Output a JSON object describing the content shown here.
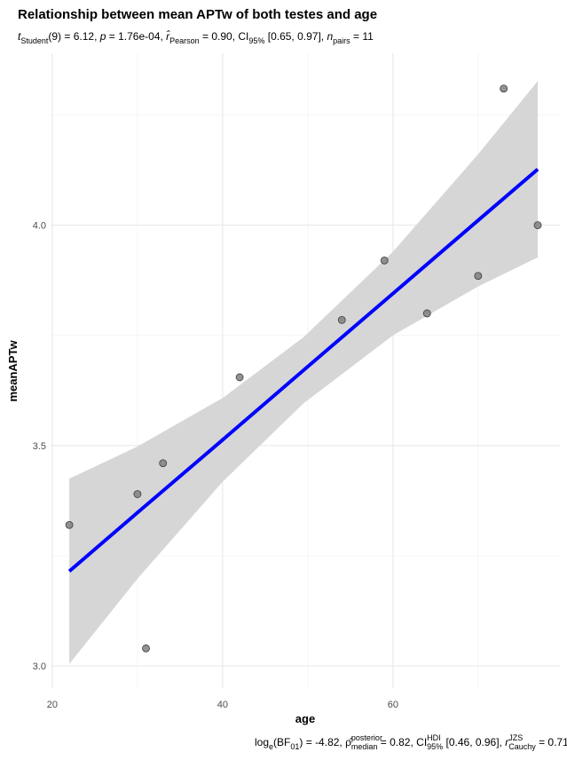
{
  "chart_data": {
    "type": "scatter",
    "title": "Relationship between mean APTw of both testes and age",
    "subtitle": [
      {
        "text": "t",
        "style": "italic"
      },
      {
        "text": "Student",
        "style": "sub"
      },
      {
        "text": "(9) = 6.12, ",
        "style": "normal"
      },
      {
        "text": "p",
        "style": "italic"
      },
      {
        "text": " = 1.76e-04, ",
        "style": "normal"
      },
      {
        "text": "r̂",
        "style": "italic"
      },
      {
        "text": "Pearson",
        "style": "sub"
      },
      {
        "text": " = 0.90, CI",
        "style": "normal"
      },
      {
        "text": "95%",
        "style": "sub"
      },
      {
        "text": " [0.65, 0.97], ",
        "style": "normal"
      },
      {
        "text": "n",
        "style": "italic"
      },
      {
        "text": "pairs",
        "style": "sub"
      },
      {
        "text": " = 11",
        "style": "normal"
      }
    ],
    "caption": [
      {
        "text": "log",
        "style": "normal"
      },
      {
        "text": "e",
        "style": "sub"
      },
      {
        "text": "(BF",
        "style": "normal"
      },
      {
        "text": "01",
        "style": "sub"
      },
      {
        "text": ") = -4.82, ",
        "style": "normal"
      },
      {
        "text": "ρ̂",
        "style": "normal"
      },
      {
        "text": "posterior",
        "style": "sup"
      },
      {
        "text": "median",
        "style": "sub"
      },
      {
        "text": " = 0.82, CI",
        "style": "normal"
      },
      {
        "text": "HDI",
        "style": "sup"
      },
      {
        "text": "95%",
        "style": "sub"
      },
      {
        "text": " [0.46, 0.96], ",
        "style": "normal"
      },
      {
        "text": "r",
        "style": "italic"
      },
      {
        "text": "JZS",
        "style": "sup"
      },
      {
        "text": "Cauchy",
        "style": "sub"
      },
      {
        "text": " = 0.71",
        "style": "normal"
      }
    ],
    "xlabel": "age",
    "ylabel": "meanAPTw",
    "x": [
      22,
      30,
      31,
      33,
      42,
      54,
      59,
      64,
      70,
      73,
      77
    ],
    "values": [
      3.32,
      3.39,
      3.04,
      3.46,
      3.655,
      3.785,
      3.92,
      3.8,
      3.885,
      4.31,
      4.0
    ],
    "color": "#808080",
    "fit": {
      "color": "#0000ff",
      "band_color": "#d6d6d6",
      "x": [
        22,
        30,
        40,
        49.5,
        60,
        70,
        77
      ],
      "y": [
        3.215,
        3.348,
        3.513,
        3.671,
        3.845,
        4.011,
        4.127
      ],
      "lower": [
        3.005,
        3.198,
        3.418,
        3.596,
        3.75,
        3.861,
        3.927
      ],
      "upper": [
        3.425,
        3.498,
        3.608,
        3.746,
        3.94,
        4.161,
        4.327
      ]
    },
    "xlim": [
      19.8,
      79.6
    ],
    "ylim": [
      2.95,
      4.39
    ],
    "xticks": [
      20,
      40,
      60
    ],
    "yticks": [
      {
        "value": 3,
        "label": "3.0"
      },
      {
        "value": 3.5,
        "label": "3.5"
      },
      {
        "value": 4,
        "label": "4.0"
      }
    ],
    "minor_xticks": [
      30,
      50,
      70
    ],
    "minor_yticks": [
      3.25,
      3.75,
      4.25
    ],
    "grid": true
  }
}
